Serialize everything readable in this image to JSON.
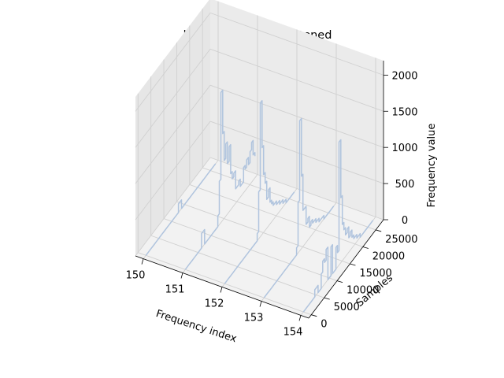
{
  "chart_data": {
    "type": "line3d",
    "title": "before being straightened",
    "xlabel": "Frequency index",
    "ylabel": "Samples",
    "zlabel": "Frequency value",
    "x_ticks": [
      "150",
      "151",
      "152",
      "153",
      "154"
    ],
    "y_ticks": [
      "0",
      "5000",
      "10000",
      "15000",
      "20000",
      "25000"
    ],
    "z_ticks": [
      "0",
      "500",
      "1000",
      "1500",
      "2000"
    ],
    "xlim": [
      149.8,
      154.2
    ],
    "ylim": [
      -1000,
      28000
    ],
    "zlim": [
      0,
      2200
    ],
    "grid": true,
    "line_color": "#b0c4de",
    "pane_color": "#f2f2f2",
    "series": [
      {
        "x": 150,
        "samples": [
          0,
          700,
          1300,
          1900,
          2500,
          3200,
          3800,
          4400,
          5000,
          5700,
          6300,
          6900,
          7500,
          8200,
          8800,
          9500,
          10100,
          10700,
          11300,
          12000,
          12600,
          13200,
          13800,
          14500,
          15100,
          15700,
          16300,
          17000,
          17600,
          18200,
          18800,
          19500,
          20100,
          20700,
          21300,
          22000,
          22600,
          23200,
          23800,
          24500,
          25100,
          25700,
          26300,
          27000
        ],
        "values": [
          0,
          0,
          0,
          0,
          0,
          0,
          0,
          0,
          0,
          0,
          0,
          0,
          0,
          0,
          0,
          0,
          0,
          0,
          0,
          0,
          120,
          120,
          0,
          0,
          0,
          0,
          0,
          0,
          0,
          0,
          0,
          0,
          0,
          0,
          0,
          0,
          0,
          0,
          0,
          0,
          0,
          0,
          0,
          0
        ]
      },
      {
        "x": 151,
        "samples": [
          0,
          700,
          1300,
          1900,
          2500,
          3200,
          3800,
          4400,
          5000,
          5700,
          6300,
          6900,
          7500,
          8200,
          8800,
          9500,
          10100,
          10700,
          11300,
          12000,
          12600,
          13200,
          13800,
          14500,
          15100,
          15700,
          16300,
          17000,
          17600,
          18200,
          18800,
          19500,
          20100,
          20700,
          21300,
          22000,
          22600,
          23200,
          23800,
          24500,
          25100,
          25700,
          26300,
          27000
        ],
        "values": [
          0,
          0,
          0,
          0,
          0,
          0,
          0,
          0,
          0,
          0,
          200,
          200,
          0,
          0,
          0,
          0,
          0,
          0,
          0,
          0,
          150,
          600,
          1800,
          1200,
          800,
          1000,
          700,
          900,
          500,
          400,
          450,
          200,
          200,
          250,
          150,
          150,
          350,
          300,
          400,
          300,
          450,
          550,
          350,
          300
        ]
      },
      {
        "x": 152,
        "samples": [
          0,
          700,
          1300,
          1900,
          2500,
          3200,
          3800,
          4400,
          5000,
          5700,
          6300,
          6900,
          7500,
          8200,
          8800,
          9500,
          10100,
          10700,
          11300,
          12000,
          12600,
          13200,
          13800,
          14500,
          15100,
          15700,
          16300,
          17000,
          17600,
          18200,
          18800,
          19500,
          20100,
          20700,
          21300,
          22000,
          22600,
          23200,
          23800,
          24500,
          25100,
          25700,
          26300,
          27000
        ],
        "values": [
          0,
          0,
          0,
          0,
          0,
          0,
          0,
          0,
          0,
          0,
          0,
          0,
          0,
          0,
          0,
          0,
          0,
          0,
          0,
          0,
          100,
          650,
          1850,
          1200,
          800,
          650,
          400,
          500,
          300,
          250,
          200,
          200,
          150,
          150,
          100,
          100,
          50,
          50,
          0,
          0,
          0,
          0,
          0,
          0
        ]
      },
      {
        "x": 153,
        "samples": [
          0,
          700,
          1300,
          1900,
          2500,
          3200,
          3800,
          4400,
          5000,
          5700,
          6300,
          6900,
          7500,
          8200,
          8800,
          9500,
          10100,
          10700,
          11300,
          12000,
          12600,
          13200,
          13800,
          14500,
          15100,
          15700,
          16300,
          17000,
          17600,
          18200,
          18800,
          19500,
          20100,
          20700,
          21300,
          22000,
          22600,
          23200,
          23800,
          24500,
          25100,
          25700,
          26300,
          27000
        ],
        "values": [
          0,
          0,
          0,
          0,
          0,
          0,
          0,
          0,
          0,
          0,
          0,
          0,
          0,
          0,
          0,
          0,
          0,
          0,
          0,
          0,
          100,
          700,
          1800,
          1000,
          500,
          500,
          250,
          300,
          150,
          200,
          150,
          150,
          100,
          100,
          50,
          50,
          50,
          0,
          0,
          0,
          0,
          0,
          0,
          0
        ]
      },
      {
        "x": 154,
        "samples": [
          0,
          700,
          1300,
          1900,
          2500,
          3200,
          3800,
          4400,
          5000,
          5700,
          6300,
          6900,
          7500,
          8200,
          8800,
          9500,
          10100,
          10700,
          11300,
          12000,
          12600,
          13200,
          13800,
          14500,
          15100,
          15700,
          16300,
          17000,
          17600,
          18200,
          18800,
          19500,
          20100,
          20700,
          21300,
          22000,
          22600,
          23200,
          23800,
          24500,
          25100,
          25700,
          26300,
          27000
        ],
        "values": [
          0,
          0,
          0,
          0,
          0,
          0,
          0,
          100,
          100,
          0,
          0,
          200,
          350,
          300,
          450,
          0,
          0,
          400,
          0,
          0,
          300,
          200,
          1700,
          900,
          500,
          400,
          300,
          350,
          200,
          250,
          150,
          100,
          100,
          50,
          50,
          0,
          0,
          0,
          0,
          0,
          0,
          0,
          0,
          0
        ]
      }
    ]
  }
}
